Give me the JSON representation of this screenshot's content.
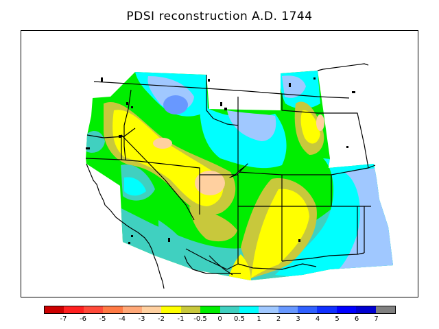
{
  "title": "PDSI reconstruction A.D. 1744",
  "legend": {
    "colors": [
      "#cc0000",
      "#ff2020",
      "#ff4a3a",
      "#ff7a45",
      "#ffa878",
      "#ffd0a0",
      "#ffff00",
      "#c8c83c",
      "#00ee00",
      "#40d0c0",
      "#00ffff",
      "#a0c8ff",
      "#6898ff",
      "#3060ff",
      "#1030ff",
      "#0000ff",
      "#0000d0",
      "#808080"
    ],
    "labels": [
      "-7",
      "-6",
      "-5",
      "-4",
      "-3",
      "-2",
      "-1",
      "-0.5",
      "0",
      "0.5",
      "1",
      "2",
      "3",
      "4",
      "5",
      "6",
      "7"
    ]
  }
}
